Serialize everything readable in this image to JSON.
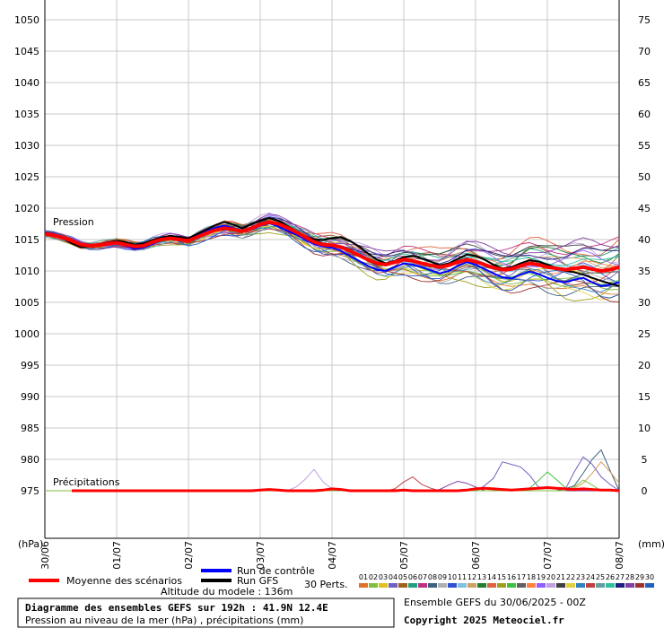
{
  "chart_data": {
    "type": "line",
    "left_axis_ticks": [
      1050,
      1045,
      1040,
      1035,
      1030,
      1025,
      1020,
      1015,
      1010,
      1005,
      1000,
      995,
      990,
      985,
      980,
      975
    ],
    "right_axis_ticks": [
      75,
      70,
      65,
      60,
      55,
      50,
      45,
      40,
      35,
      30,
      25,
      20,
      15,
      10,
      5,
      0
    ],
    "left_unit": "(hPa)",
    "right_unit": "(mm)",
    "ylim_pressure": [
      975,
      1050
    ],
    "ylim_precip": [
      0,
      75
    ],
    "x_steps": 64,
    "x_step_hours": 3,
    "x_tick_labels": [
      "30/06",
      "01/07",
      "02/07",
      "03/07",
      "04/07",
      "05/07",
      "06/07",
      "07/07",
      "08/07"
    ],
    "label_pressure": "Pression",
    "label_precip": "Précipitations",
    "series": [
      {
        "name": "Moyenne des scénarios",
        "color": "#ff0000",
        "values": [
          1015.9,
          1015.7,
          1015.3,
          1014.8,
          1014.2,
          1014.0,
          1014.1,
          1014.3,
          1014.5,
          1014.2,
          1013.9,
          1014.0,
          1014.6,
          1015.0,
          1015.2,
          1015.0,
          1014.8,
          1015.4,
          1016.0,
          1016.5,
          1016.8,
          1016.6,
          1016.3,
          1016.8,
          1017.4,
          1017.8,
          1017.5,
          1016.9,
          1016.2,
          1015.4,
          1014.6,
          1014.2,
          1014.1,
          1013.8,
          1013.2,
          1012.5,
          1011.8,
          1011.2,
          1011.0,
          1011.4,
          1011.8,
          1011.6,
          1011.2,
          1010.9,
          1010.6,
          1010.9,
          1011.4,
          1011.8,
          1011.5,
          1011.0,
          1010.5,
          1010.2,
          1010.3,
          1010.8,
          1011.2,
          1011.0,
          1010.6,
          1010.4,
          1010.2,
          1010.4,
          1010.6,
          1010.3,
          1010.0,
          1010.2,
          1010.6
        ]
      },
      {
        "name": "Run de contrôle",
        "color": "#0000ff",
        "values": [
          1016.1,
          1015.9,
          1015.4,
          1014.9,
          1014.3,
          1014.1,
          1014.2,
          1014.4,
          1014.6,
          1014.0,
          1013.5,
          1013.7,
          1014.3,
          1014.9,
          1015.3,
          1015.1,
          1014.9,
          1015.6,
          1016.3,
          1016.9,
          1017.2,
          1016.8,
          1016.2,
          1016.6,
          1017.2,
          1017.6,
          1017.1,
          1016.4,
          1015.8,
          1015.0,
          1014.3,
          1013.9,
          1013.7,
          1013.2,
          1012.4,
          1011.6,
          1010.8,
          1010.2,
          1010.0,
          1010.6,
          1011.2,
          1011.0,
          1010.6,
          1010.1,
          1009.6,
          1010.0,
          1010.8,
          1011.4,
          1011.0,
          1010.3,
          1009.6,
          1009.0,
          1008.8,
          1009.4,
          1009.9,
          1009.5,
          1008.9,
          1008.4,
          1008.2,
          1008.6,
          1008.9,
          1008.2,
          1007.6,
          1007.8,
          1008.2
        ]
      },
      {
        "name": "Run GFS",
        "color": "#000000",
        "values": [
          1016.0,
          1015.8,
          1015.2,
          1014.4,
          1013.8,
          1013.9,
          1014.2,
          1014.5,
          1014.8,
          1014.6,
          1014.2,
          1014.4,
          1014.9,
          1015.3,
          1015.6,
          1015.4,
          1015.2,
          1015.9,
          1016.6,
          1017.3,
          1017.8,
          1017.4,
          1016.8,
          1017.4,
          1018.0,
          1018.4,
          1018.0,
          1017.2,
          1016.3,
          1015.5,
          1015.0,
          1014.9,
          1015.2,
          1015.4,
          1014.8,
          1013.9,
          1012.8,
          1011.8,
          1011.2,
          1011.6,
          1012.2,
          1012.4,
          1012.0,
          1011.5,
          1010.9,
          1011.2,
          1011.9,
          1012.6,
          1012.4,
          1011.8,
          1011.0,
          1010.4,
          1010.6,
          1011.2,
          1011.7,
          1011.5,
          1011.0,
          1010.5,
          1010.0,
          1009.8,
          1009.4,
          1008.9,
          1008.4,
          1008.0,
          1007.6
        ]
      }
    ],
    "precip_mean": [
      0,
      0,
      0,
      0,
      0,
      0,
      0,
      0,
      0,
      0,
      0,
      0,
      0,
      0,
      0,
      0,
      0,
      0,
      0,
      0,
      0,
      0,
      0,
      0,
      0.1,
      0.2,
      0.1,
      0,
      0,
      0,
      0,
      0.1,
      0.3,
      0.2,
      0,
      0,
      0,
      0,
      0,
      0,
      0.1,
      0,
      0,
      0,
      0,
      0,
      0,
      0.1,
      0.3,
      0.4,
      0.3,
      0.2,
      0.1,
      0.2,
      0.3,
      0.4,
      0.5,
      0.4,
      0.3,
      0.2,
      0.3,
      0.2,
      0.1,
      0.1,
      0
    ],
    "precip_members": [
      [
        0,
        0,
        0,
        0,
        0,
        0,
        0,
        0,
        0,
        0,
        0,
        0,
        0,
        0,
        0,
        0,
        0,
        0,
        0,
        0,
        0,
        0,
        0,
        0,
        0,
        0,
        0,
        0,
        0,
        0,
        0,
        0,
        0,
        0,
        0,
        0,
        0,
        0,
        0,
        0,
        0,
        0,
        0,
        0,
        0,
        0,
        0,
        0,
        0,
        0.8,
        2.0,
        4.6,
        4.2,
        3.8,
        2.5,
        0.6,
        0.5,
        0.5,
        0.2,
        3.0,
        5.4,
        4.2,
        2.2,
        1.0,
        0
      ],
      [
        0,
        0,
        0,
        0,
        0,
        0,
        0,
        0,
        0,
        0,
        0,
        0,
        0,
        0,
        0,
        0,
        0,
        0,
        0,
        0,
        0,
        0,
        0,
        0,
        0,
        0,
        0,
        0,
        0,
        0,
        0,
        0,
        0,
        0,
        0,
        0,
        0,
        0,
        0,
        0,
        0,
        0,
        0,
        0,
        0,
        0,
        0,
        0,
        0,
        0,
        0,
        0,
        0,
        0,
        0,
        0,
        0,
        0,
        0.3,
        0.8,
        2.8,
        5.0,
        6.5,
        3.2,
        0
      ],
      [
        0,
        0,
        0,
        0,
        0,
        0,
        0,
        0,
        0,
        0,
        0,
        0,
        0,
        0,
        0,
        0,
        0,
        0,
        0,
        0,
        0,
        0,
        0,
        0,
        0,
        0,
        0,
        0,
        0,
        0,
        0,
        0,
        0,
        0,
        0,
        0,
        0,
        0,
        0,
        0,
        0,
        0,
        0,
        0,
        0,
        0,
        0,
        0,
        0,
        0,
        0,
        0,
        0,
        0,
        0,
        0,
        0,
        0,
        0,
        0.4,
        1.2,
        2.8,
        4.6,
        3.0,
        1.2
      ],
      [
        0,
        0,
        0,
        0,
        0,
        0,
        0,
        0,
        0,
        0,
        0,
        0,
        0,
        0,
        0,
        0,
        0,
        0,
        0,
        0,
        0,
        0,
        0,
        0,
        0,
        0,
        0,
        0,
        0,
        0,
        0,
        0,
        0,
        0,
        0,
        0,
        0,
        0,
        0,
        0,
        0,
        0,
        0,
        0,
        0,
        0,
        0,
        0,
        0,
        0,
        0,
        0,
        0,
        0,
        0.4,
        1.6,
        3.0,
        1.8,
        0.5,
        0,
        0,
        0,
        0,
        0,
        0
      ],
      [
        0,
        0,
        0,
        0,
        0,
        0,
        0,
        0,
        0,
        0,
        0,
        0,
        0,
        0,
        0,
        0,
        0,
        0,
        0,
        0,
        0,
        0,
        0,
        0,
        0,
        0,
        0,
        0,
        0.6,
        1.8,
        3.4,
        1.4,
        0.3,
        0,
        0,
        0,
        0,
        0,
        0,
        0,
        0,
        0,
        0,
        0,
        0,
        0,
        0,
        0,
        0,
        0,
        0,
        0,
        0,
        0,
        0,
        0,
        0,
        0,
        0,
        0,
        0,
        0,
        0,
        0,
        0
      ],
      [
        0,
        0,
        0,
        0,
        0,
        0,
        0,
        0,
        0,
        0,
        0,
        0,
        0,
        0,
        0,
        0,
        0,
        0,
        0,
        0,
        0,
        0,
        0,
        0,
        0,
        0,
        0,
        0,
        0,
        0,
        0,
        0,
        0,
        0,
        0,
        0,
        0,
        0,
        0,
        0.3,
        1.4,
        2.2,
        1.0,
        0.4,
        0,
        0,
        0,
        0,
        0,
        0,
        0,
        0,
        0,
        0,
        0,
        0,
        0,
        0,
        0,
        0,
        0,
        0,
        0,
        0,
        0
      ],
      [
        0,
        0,
        0,
        0,
        0,
        0,
        0,
        0,
        0,
        0,
        0,
        0,
        0,
        0,
        0,
        0,
        0,
        0,
        0,
        0,
        0,
        0,
        0,
        0,
        0,
        0,
        0,
        0,
        0,
        0,
        0,
        0,
        0,
        0,
        0,
        0,
        0,
        0,
        0,
        0,
        0,
        0,
        0,
        0,
        0.2,
        0.9,
        1.5,
        1.2,
        0.6,
        0,
        0,
        0,
        0,
        0,
        0,
        0,
        0,
        0,
        0,
        0,
        0,
        0,
        0,
        0,
        0
      ],
      [
        0,
        0,
        0,
        0,
        0,
        0,
        0,
        0,
        0,
        0,
        0,
        0,
        0,
        0,
        0,
        0,
        0,
        0,
        0,
        0,
        0,
        0,
        0,
        0,
        0,
        0,
        0,
        0,
        0,
        0,
        0,
        0,
        0,
        0,
        0,
        0,
        0,
        0,
        0,
        0,
        0,
        0,
        0,
        0,
        0,
        0,
        0,
        0,
        0,
        0,
        0,
        0,
        0,
        0,
        0,
        0,
        0,
        0,
        0,
        0.6,
        1.7,
        0.9,
        0,
        0,
        0
      ]
    ],
    "precip_line_color": "#ff0000",
    "member_colors": [
      "#e0702a",
      "#7fbf3f",
      "#e0c020",
      "#7060c0",
      "#a06020",
      "#20a080",
      "#c03080",
      "#406080",
      "#b0b0b0",
      "#3050d0",
      "#80c0e0",
      "#d0a060",
      "#208030",
      "#e06040",
      "#a0a020",
      "#40c040",
      "#606060",
      "#ff8040",
      "#9060ff",
      "#c0a0e0",
      "#404040",
      "#e0d040",
      "#3080c0",
      "#c04040",
      "#60a0a0",
      "#30c0a0",
      "#202080",
      "#8040a0",
      "#a03030",
      "#2060c0"
    ],
    "members_count": 30
  },
  "legend": {
    "mean": "Moyenne des scénarios",
    "control": "Run de contrôle",
    "gfs": "Run GFS",
    "perts": "30 Perts.",
    "altitude": "Altitude du modele : 136m",
    "ensemble": "Ensemble GEFS du 30/06/2025 - 00Z",
    "copyright": "Copyright 2025 Meteociel.fr",
    "pert_labels": [
      "01",
      "02",
      "03",
      "04",
      "05",
      "06",
      "07",
      "08",
      "09",
      "10",
      "11",
      "12",
      "13",
      "14",
      "15",
      "16",
      "17",
      "18",
      "19",
      "20",
      "21",
      "22",
      "23",
      "24",
      "25",
      "26",
      "27",
      "28",
      "29",
      "30"
    ]
  },
  "title_box": {
    "title": "Diagramme des ensembles GEFS sur 192h : 41.9N 12.4E",
    "subtitle": "Pression au niveau de la mer (hPa) , précipitations (mm)"
  }
}
